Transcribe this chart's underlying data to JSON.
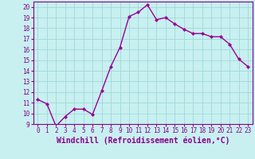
{
  "x": [
    0,
    1,
    2,
    3,
    4,
    5,
    6,
    7,
    8,
    9,
    10,
    11,
    12,
    13,
    14,
    15,
    16,
    17,
    18,
    19,
    20,
    21,
    22,
    23
  ],
  "y": [
    11.3,
    10.9,
    8.8,
    9.7,
    10.4,
    10.4,
    9.9,
    12.1,
    14.4,
    16.2,
    19.1,
    19.5,
    20.2,
    18.8,
    19.0,
    18.4,
    17.9,
    17.5,
    17.5,
    17.2,
    17.2,
    16.5,
    15.1,
    14.4
  ],
  "line_color": "#990099",
  "marker": "D",
  "marker_size": 2,
  "xlabel": "Windchill (Refroidissement éolien,°C)",
  "xlim": [
    -0.5,
    23.5
  ],
  "ylim": [
    9,
    20.5
  ],
  "yticks": [
    9,
    10,
    11,
    12,
    13,
    14,
    15,
    16,
    17,
    18,
    19,
    20
  ],
  "xticks": [
    0,
    1,
    2,
    3,
    4,
    5,
    6,
    7,
    8,
    9,
    10,
    11,
    12,
    13,
    14,
    15,
    16,
    17,
    18,
    19,
    20,
    21,
    22,
    23
  ],
  "bg_color": "#c8f0f0",
  "grid_color": "#a0d8d8",
  "font_color": "#880088",
  "tick_label_size": 5.5,
  "xlabel_size": 7.0,
  "linewidth": 1.0
}
